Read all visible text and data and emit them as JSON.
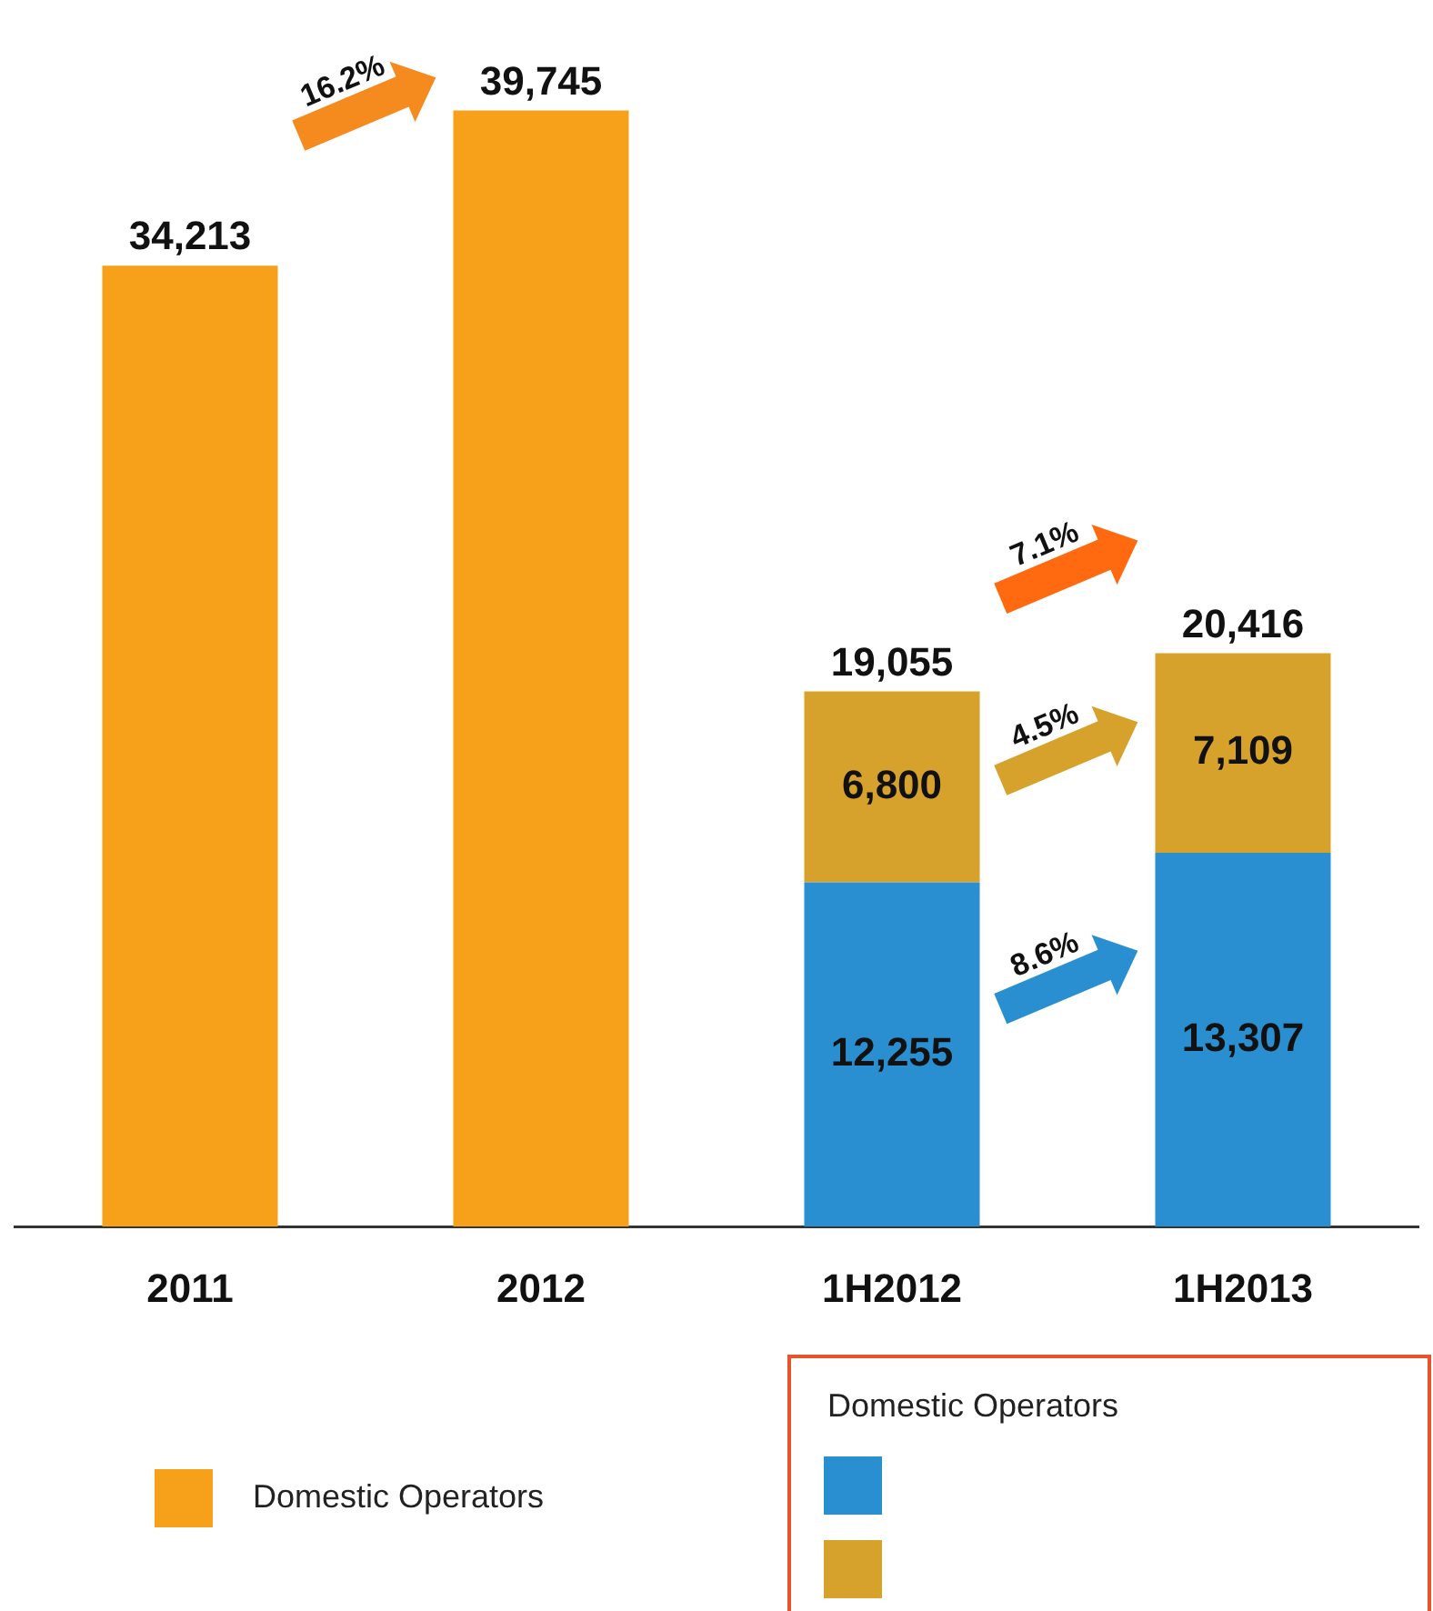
{
  "chart_data": {
    "type": "bar",
    "stacked": true,
    "categories": [
      "2011",
      "2012",
      "1H2012",
      "1H2013"
    ],
    "series": [
      {
        "name": "Domestic Operators",
        "color": "#f7a11a",
        "values": [
          34213,
          39745,
          null,
          null
        ],
        "value_labels": [
          "34,213",
          "39,745",
          null,
          null
        ]
      },
      {
        "color": "#2a8fd0",
        "values": [
          null,
          null,
          12255,
          13307
        ],
        "value_labels": [
          null,
          null,
          "12,255",
          "13,307"
        ]
      },
      {
        "color": "#d6a22c",
        "values": [
          null,
          null,
          6800,
          7109
        ],
        "value_labels": [
          null,
          null,
          "6,800",
          "7,109"
        ]
      }
    ],
    "totals": [
      null,
      null,
      "19,055",
      "20,416"
    ],
    "legend": "bottom",
    "legend_title": "Domestic Operators",
    "annotations": [
      "16.2%",
      "7.1%",
      "4.5%",
      "8.6%"
    ]
  }
}
